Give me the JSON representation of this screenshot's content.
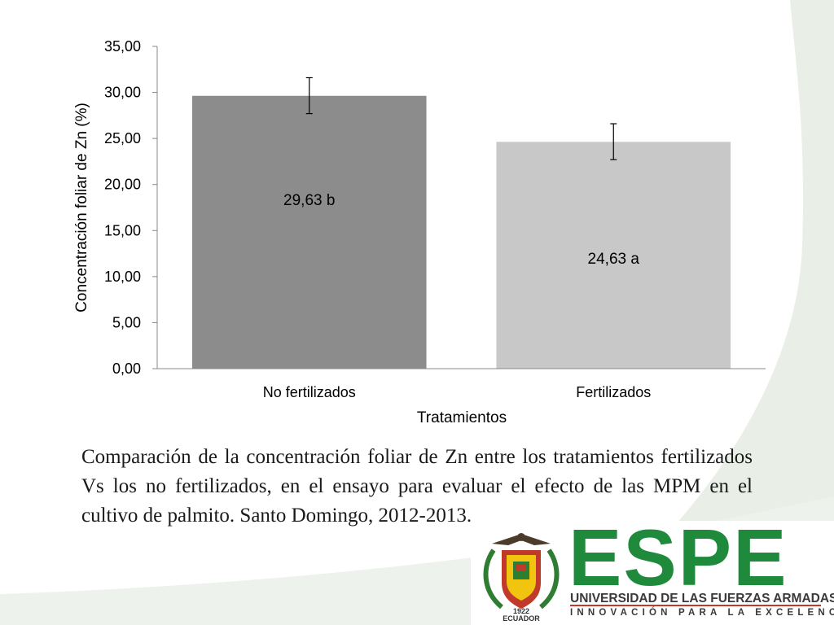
{
  "chart_data": {
    "type": "bar",
    "categories": [
      "No fertilizados",
      "Fertilizados"
    ],
    "values": [
      29.63,
      24.63
    ],
    "error_low": [
      27.7,
      22.7
    ],
    "error_high": [
      31.6,
      26.6
    ],
    "data_labels": [
      "29,63 b",
      "24,63 a"
    ],
    "bar_colors": [
      "#8c8c8c",
      "#c8c8c8"
    ],
    "xlabel": "Tratamientos",
    "ylabel": "Concentración foliar de Zn (%)",
    "ylim": [
      0,
      35
    ],
    "yticks": [
      "0,00",
      "5,00",
      "10,00",
      "15,00",
      "20,00",
      "25,00",
      "30,00",
      "35,00"
    ],
    "grid": false,
    "legend": "none"
  },
  "caption": "Comparación de la concentración foliar de Zn entre los tratamientos fertilizados Vs los no fertilizados, en el ensayo para evaluar el efecto de las MPM en el cultivo de palmito. Santo Domingo, 2012-2013.",
  "logo": {
    "wordmark": "ESPE",
    "university": "UNIVERSIDAD DE LAS FUERZAS ARMADAS",
    "motto": "INNOVACIÓN PARA LA EXCELENCIA",
    "crest_year": "1922",
    "crest_country": "ECUADOR",
    "brand_color": "#1f8a3c"
  },
  "colors": {
    "background_swoosh": "#e9efe6"
  }
}
